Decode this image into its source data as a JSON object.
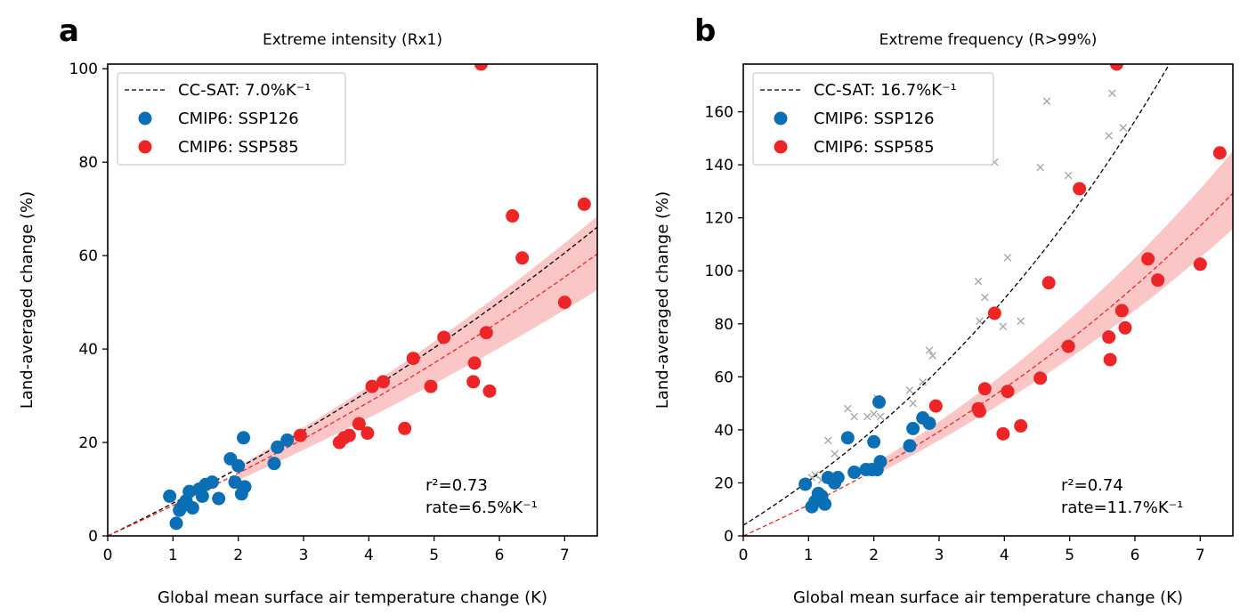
{
  "colors": {
    "ssp126": "#0a6fb4",
    "ssp585": "#ee2526",
    "band": "#f9b3b3",
    "cross": "#a8a8a8",
    "cc": "#000000"
  },
  "chart_data": [
    {
      "panel": "a",
      "type": "scatter",
      "title": "Extreme intensity (Rx1)",
      "xlabel": "Global mean surface air temperature change (K)",
      "ylabel": "Land-averaged change (%)",
      "xlim": [
        0,
        7.5
      ],
      "ylim": [
        0,
        101
      ],
      "xticks": [
        0,
        1,
        2,
        3,
        4,
        5,
        6,
        7
      ],
      "yticks": [
        0,
        20,
        40,
        60,
        80,
        100
      ],
      "legend": {
        "position": "top-left",
        "entries": [
          "CC-SAT: 7.0%K⁻¹",
          "CMIP6: SSP126",
          "CMIP6: SSP585"
        ]
      },
      "cc_rate": 0.07,
      "fit_rate": 0.065,
      "band_rates": [
        0.058,
        0.072
      ],
      "stats": [
        "r²=0.73",
        "rate=6.5%K⁻¹"
      ],
      "crosses": [],
      "series": [
        {
          "name": "CMIP6: SSP126",
          "color_key": "ssp126",
          "points": [
            [
              0.95,
              8.5
            ],
            [
              1.05,
              2.7
            ],
            [
              1.1,
              5.5
            ],
            [
              1.15,
              6.5
            ],
            [
              1.2,
              7.5
            ],
            [
              1.25,
              9.5
            ],
            [
              1.3,
              6.0
            ],
            [
              1.4,
              10.0
            ],
            [
              1.45,
              8.5
            ],
            [
              1.5,
              11.0
            ],
            [
              1.6,
              11.5
            ],
            [
              1.7,
              8.0
            ],
            [
              1.88,
              16.5
            ],
            [
              1.95,
              11.5
            ],
            [
              2.0,
              15.0
            ],
            [
              2.05,
              9.0
            ],
            [
              2.08,
              21.0
            ],
            [
              2.1,
              10.5
            ],
            [
              2.55,
              15.5
            ],
            [
              2.6,
              19.0
            ],
            [
              2.75,
              20.5
            ]
          ]
        },
        {
          "name": "CMIP6: SSP585",
          "color_key": "ssp585",
          "points": [
            [
              2.95,
              21.5
            ],
            [
              3.55,
              20.0
            ],
            [
              3.62,
              21.0
            ],
            [
              3.7,
              21.5
            ],
            [
              3.85,
              24.0
            ],
            [
              3.98,
              22.0
            ],
            [
              4.05,
              32.0
            ],
            [
              4.22,
              33.0
            ],
            [
              4.55,
              23.0
            ],
            [
              4.68,
              38.0
            ],
            [
              4.95,
              32.0
            ],
            [
              5.15,
              42.5
            ],
            [
              5.6,
              33.0
            ],
            [
              5.62,
              37.0
            ],
            [
              5.72,
              101.0
            ],
            [
              5.8,
              43.5
            ],
            [
              5.85,
              31.0
            ],
            [
              6.2,
              68.5
            ],
            [
              6.35,
              59.5
            ],
            [
              7.0,
              50.0
            ],
            [
              7.3,
              71.0
            ]
          ]
        }
      ]
    },
    {
      "panel": "b",
      "type": "scatter",
      "title": "Extreme frequency (R>99%)",
      "xlabel": "Global mean surface air temperature change (K)",
      "ylabel": "Land-averaged change (%)",
      "xlim": [
        0,
        7.5
      ],
      "ylim": [
        0,
        178
      ],
      "xticks": [
        0,
        1,
        2,
        3,
        4,
        5,
        6,
        7
      ],
      "yticks": [
        0,
        20,
        40,
        60,
        80,
        100,
        120,
        140,
        160
      ],
      "legend": {
        "position": "top-left",
        "entries": [
          "CC-SAT: 16.7%K⁻¹",
          "CMIP6: SSP126",
          "CMIP6: SSP585"
        ]
      },
      "cc_rate": 0.167,
      "cc_offset": 4,
      "fit_rate": 0.117,
      "band_rates": [
        0.108,
        0.127
      ],
      "stats": [
        "r²=0.74",
        "rate=11.7%K⁻¹"
      ],
      "crosses": [
        [
          1.05,
          22
        ],
        [
          1.1,
          23
        ],
        [
          1.2,
          21
        ],
        [
          1.3,
          36
        ],
        [
          1.4,
          31
        ],
        [
          1.6,
          48
        ],
        [
          1.7,
          45
        ],
        [
          1.9,
          45
        ],
        [
          2.0,
          46
        ],
        [
          2.05,
          52
        ],
        [
          2.1,
          45
        ],
        [
          2.55,
          55
        ],
        [
          2.6,
          50
        ],
        [
          2.75,
          58
        ],
        [
          2.85,
          70
        ],
        [
          2.9,
          68
        ],
        [
          3.6,
          96
        ],
        [
          3.62,
          81
        ],
        [
          3.7,
          90
        ],
        [
          3.85,
          141
        ],
        [
          3.98,
          79
        ],
        [
          4.05,
          105
        ],
        [
          4.25,
          81
        ],
        [
          4.55,
          139
        ],
        [
          4.65,
          164
        ],
        [
          4.98,
          136
        ],
        [
          5.6,
          151
        ],
        [
          5.65,
          167
        ],
        [
          5.82,
          154
        ]
      ],
      "series": [
        {
          "name": "CMIP6: SSP126",
          "color_key": "ssp126",
          "points": [
            [
              0.95,
              19.5
            ],
            [
              1.05,
              11
            ],
            [
              1.1,
              13
            ],
            [
              1.15,
              16
            ],
            [
              1.2,
              15
            ],
            [
              1.25,
              12
            ],
            [
              1.3,
              22
            ],
            [
              1.4,
              20
            ],
            [
              1.45,
              22
            ],
            [
              1.6,
              37
            ],
            [
              1.7,
              24
            ],
            [
              1.88,
              25
            ],
            [
              1.97,
              25
            ],
            [
              2.0,
              35.5
            ],
            [
              2.05,
              25
            ],
            [
              2.08,
              50.5
            ],
            [
              2.1,
              28
            ],
            [
              2.55,
              34
            ],
            [
              2.6,
              40.5
            ],
            [
              2.75,
              44.5
            ],
            [
              2.85,
              42.5
            ]
          ]
        },
        {
          "name": "CMIP6: SSP585",
          "color_key": "ssp585",
          "points": [
            [
              2.95,
              49
            ],
            [
              3.6,
              48
            ],
            [
              3.62,
              47
            ],
            [
              3.7,
              55.5
            ],
            [
              3.85,
              84
            ],
            [
              3.98,
              38.5
            ],
            [
              4.05,
              54.5
            ],
            [
              4.25,
              41.5
            ],
            [
              4.55,
              59.5
            ],
            [
              4.68,
              95.5
            ],
            [
              4.98,
              71.5
            ],
            [
              5.15,
              131
            ],
            [
              5.6,
              75
            ],
            [
              5.62,
              66.5
            ],
            [
              5.72,
              178
            ],
            [
              5.8,
              85
            ],
            [
              5.85,
              78.5
            ],
            [
              6.2,
              104.5
            ],
            [
              6.35,
              96.5
            ],
            [
              7.0,
              102.5
            ],
            [
              7.3,
              144.5
            ]
          ]
        }
      ]
    }
  ]
}
